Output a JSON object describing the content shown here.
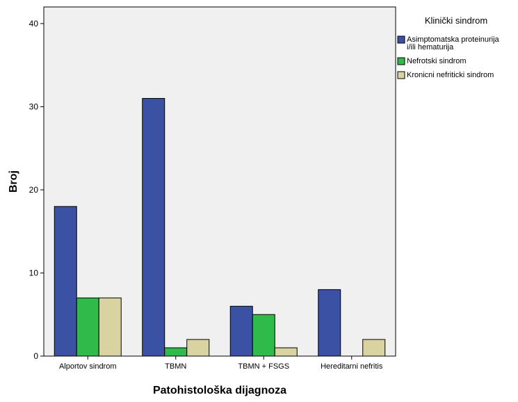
{
  "chart_data": {
    "type": "bar",
    "title": "",
    "xlabel": "Patohistološka dijagnoza",
    "ylabel": "Broj",
    "ylim": [
      0,
      42
    ],
    "yticks": [
      0,
      10,
      20,
      30,
      40
    ],
    "grid": false,
    "legend_position": "right",
    "legend_title": "Klinički sindrom",
    "categories": [
      "Alportov sindrom",
      "TBMN",
      "TBMN + FSGS",
      "Hereditarni nefritis"
    ],
    "series": [
      {
        "name": "Asimptomatska proteinurija i/ili hematurija",
        "legend_lines": [
          "Asimptomatska proteinurija",
          "i/ili hematurija"
        ],
        "color": "#3b51a3",
        "values": [
          18,
          31,
          6,
          8
        ]
      },
      {
        "name": "Nefrotski sindrom",
        "legend_lines": [
          "Nefrotski sindrom"
        ],
        "color": "#2fba4a",
        "values": [
          7,
          1,
          5,
          0
        ]
      },
      {
        "name": "Kronicni nefriticki sindrom",
        "legend_lines": [
          "Kronicni nefriticki sindrom"
        ],
        "color": "#d8d3a0",
        "values": [
          7,
          2,
          1,
          2
        ]
      }
    ],
    "plot_background": "#f0f0f0"
  }
}
